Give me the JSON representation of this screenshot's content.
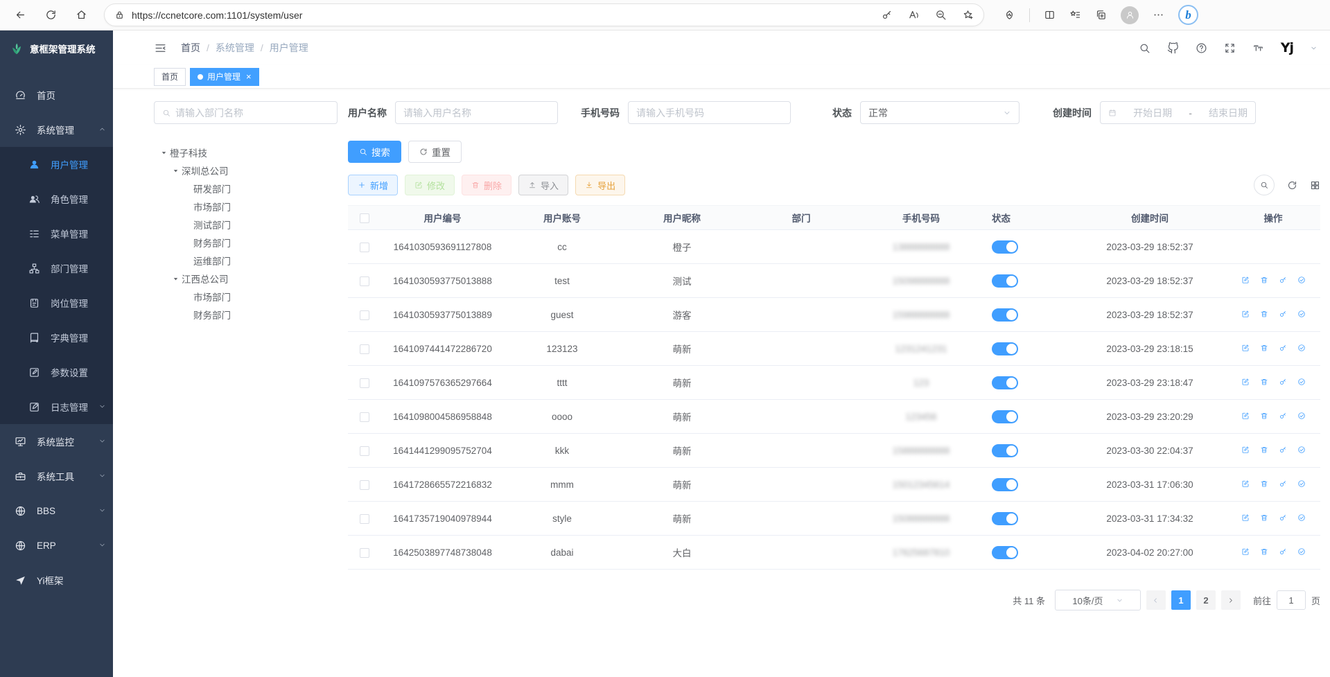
{
  "browser": {
    "url": "https://ccnetcore.com:1101/system/user"
  },
  "app": {
    "logo_title": "意框架管理系统"
  },
  "nav": {
    "breadcrumb": [
      "首页",
      "系统管理",
      "用户管理"
    ],
    "separator": "/"
  },
  "tags": {
    "home_tab": "首页",
    "active_tab": "用户管理",
    "close_glyph": "×"
  },
  "sidebar": {
    "items": [
      {
        "label": "首页",
        "icon": "dashboard"
      },
      {
        "label": "系统管理",
        "icon": "gear",
        "caret": "up"
      },
      {
        "label": "用户管理",
        "icon": "user",
        "child": true,
        "active": true
      },
      {
        "label": "角色管理",
        "icon": "users",
        "child": true
      },
      {
        "label": "菜单管理",
        "icon": "menu",
        "child": true
      },
      {
        "label": "部门管理",
        "icon": "org",
        "child": true
      },
      {
        "label": "岗位管理",
        "icon": "badge",
        "child": true
      },
      {
        "label": "字典管理",
        "icon": "book",
        "child": true
      },
      {
        "label": "参数设置",
        "icon": "edit",
        "child": true
      },
      {
        "label": "日志管理",
        "icon": "log",
        "child": true,
        "caret": "down"
      },
      {
        "label": "系统监控",
        "icon": "monitor",
        "caret": "down"
      },
      {
        "label": "系统工具",
        "icon": "tool",
        "caret": "down"
      },
      {
        "label": "BBS",
        "icon": "globe",
        "caret": "down"
      },
      {
        "label": "ERP",
        "icon": "globe",
        "caret": "down"
      },
      {
        "label": "Yi框架",
        "icon": "send"
      }
    ]
  },
  "filters": {
    "dept_placeholder": "请输入部门名称",
    "username_label": "用户名称",
    "username_placeholder": "请输入用户名称",
    "phone_label": "手机号码",
    "phone_placeholder": "请输入手机号码",
    "status_label": "状态",
    "status_value": "正常",
    "created_label": "创建时间",
    "date_start_placeholder": "开始日期",
    "date_separator": "-",
    "date_end_placeholder": "结束日期",
    "search_button": "搜索",
    "reset_button": "重置"
  },
  "tree": {
    "nodes": [
      {
        "label": "橙子科技",
        "level": 0,
        "expandable": true
      },
      {
        "label": "深圳总公司",
        "level": 1,
        "expandable": true
      },
      {
        "label": "研发部门",
        "level": 2
      },
      {
        "label": "市场部门",
        "level": 2
      },
      {
        "label": "测试部门",
        "level": 2
      },
      {
        "label": "财务部门",
        "level": 2
      },
      {
        "label": "运维部门",
        "level": 2
      },
      {
        "label": "江西总公司",
        "level": 1,
        "expandable": true
      },
      {
        "label": "市场部门",
        "level": 2
      },
      {
        "label": "财务部门",
        "level": 2
      }
    ]
  },
  "toolbar": {
    "add_label": "新增",
    "edit_label": "修改",
    "delete_label": "删除",
    "import_label": "导入",
    "export_label": "导出"
  },
  "table": {
    "columns": [
      "用户编号",
      "用户账号",
      "用户昵称",
      "部门",
      "手机号码",
      "状态",
      "创建时间",
      "操作"
    ],
    "rows": [
      {
        "id": "1641030593691127808",
        "account": "cc",
        "nickname": "橙子",
        "dept": "",
        "phone": "13888888888",
        "status": true,
        "created": "2023-03-29 18:52:37",
        "ops": false
      },
      {
        "id": "1641030593775013888",
        "account": "test",
        "nickname": "测试",
        "dept": "",
        "phone": "15098888888",
        "status": true,
        "created": "2023-03-29 18:52:37",
        "ops": true
      },
      {
        "id": "1641030593775013889",
        "account": "guest",
        "nickname": "游客",
        "dept": "",
        "phone": "15988888888",
        "status": true,
        "created": "2023-03-29 18:52:37",
        "ops": true
      },
      {
        "id": "1641097441472286720",
        "account": "123123",
        "nickname": "萌新",
        "dept": "",
        "phone": "1231241231",
        "status": true,
        "created": "2023-03-29 23:18:15",
        "ops": true
      },
      {
        "id": "1641097576365297664",
        "account": "tttt",
        "nickname": "萌新",
        "dept": "",
        "phone": "123",
        "status": true,
        "created": "2023-03-29 23:18:47",
        "ops": true
      },
      {
        "id": "1641098004586958848",
        "account": "oooo",
        "nickname": "萌新",
        "dept": "",
        "phone": "123456",
        "status": true,
        "created": "2023-03-29 23:20:29",
        "ops": true
      },
      {
        "id": "1641441299095752704",
        "account": "kkk",
        "nickname": "萌新",
        "dept": "",
        "phone": "15888888888",
        "status": true,
        "created": "2023-03-30 22:04:37",
        "ops": true
      },
      {
        "id": "1641728665572216832",
        "account": "mmm",
        "nickname": "萌新",
        "dept": "",
        "phone": "15012345614",
        "status": true,
        "created": "2023-03-31 17:06:30",
        "ops": true
      },
      {
        "id": "1641735719040978944",
        "account": "style",
        "nickname": "萌新",
        "dept": "",
        "phone": "15088888888",
        "status": true,
        "created": "2023-03-31 17:34:32",
        "ops": true
      },
      {
        "id": "1642503897748738048",
        "account": "dabai",
        "nickname": "大白",
        "dept": "",
        "phone": "17625687810",
        "status": true,
        "created": "2023-04-02 20:27:00",
        "ops": true
      }
    ]
  },
  "pagination": {
    "total_text": "共 11 条",
    "page_size": "10条/页",
    "pages": [
      {
        "label": "1",
        "active": true
      },
      {
        "label": "2",
        "active": false
      }
    ],
    "goto_label": "前往",
    "goto_value": "1",
    "page_suffix": "页"
  },
  "colors": {
    "accent_blue": "#409eff",
    "sidebar_bg": "#2e3c52",
    "submenu_bg": "#222d41",
    "active_tab_bg": "#42a0ff"
  }
}
